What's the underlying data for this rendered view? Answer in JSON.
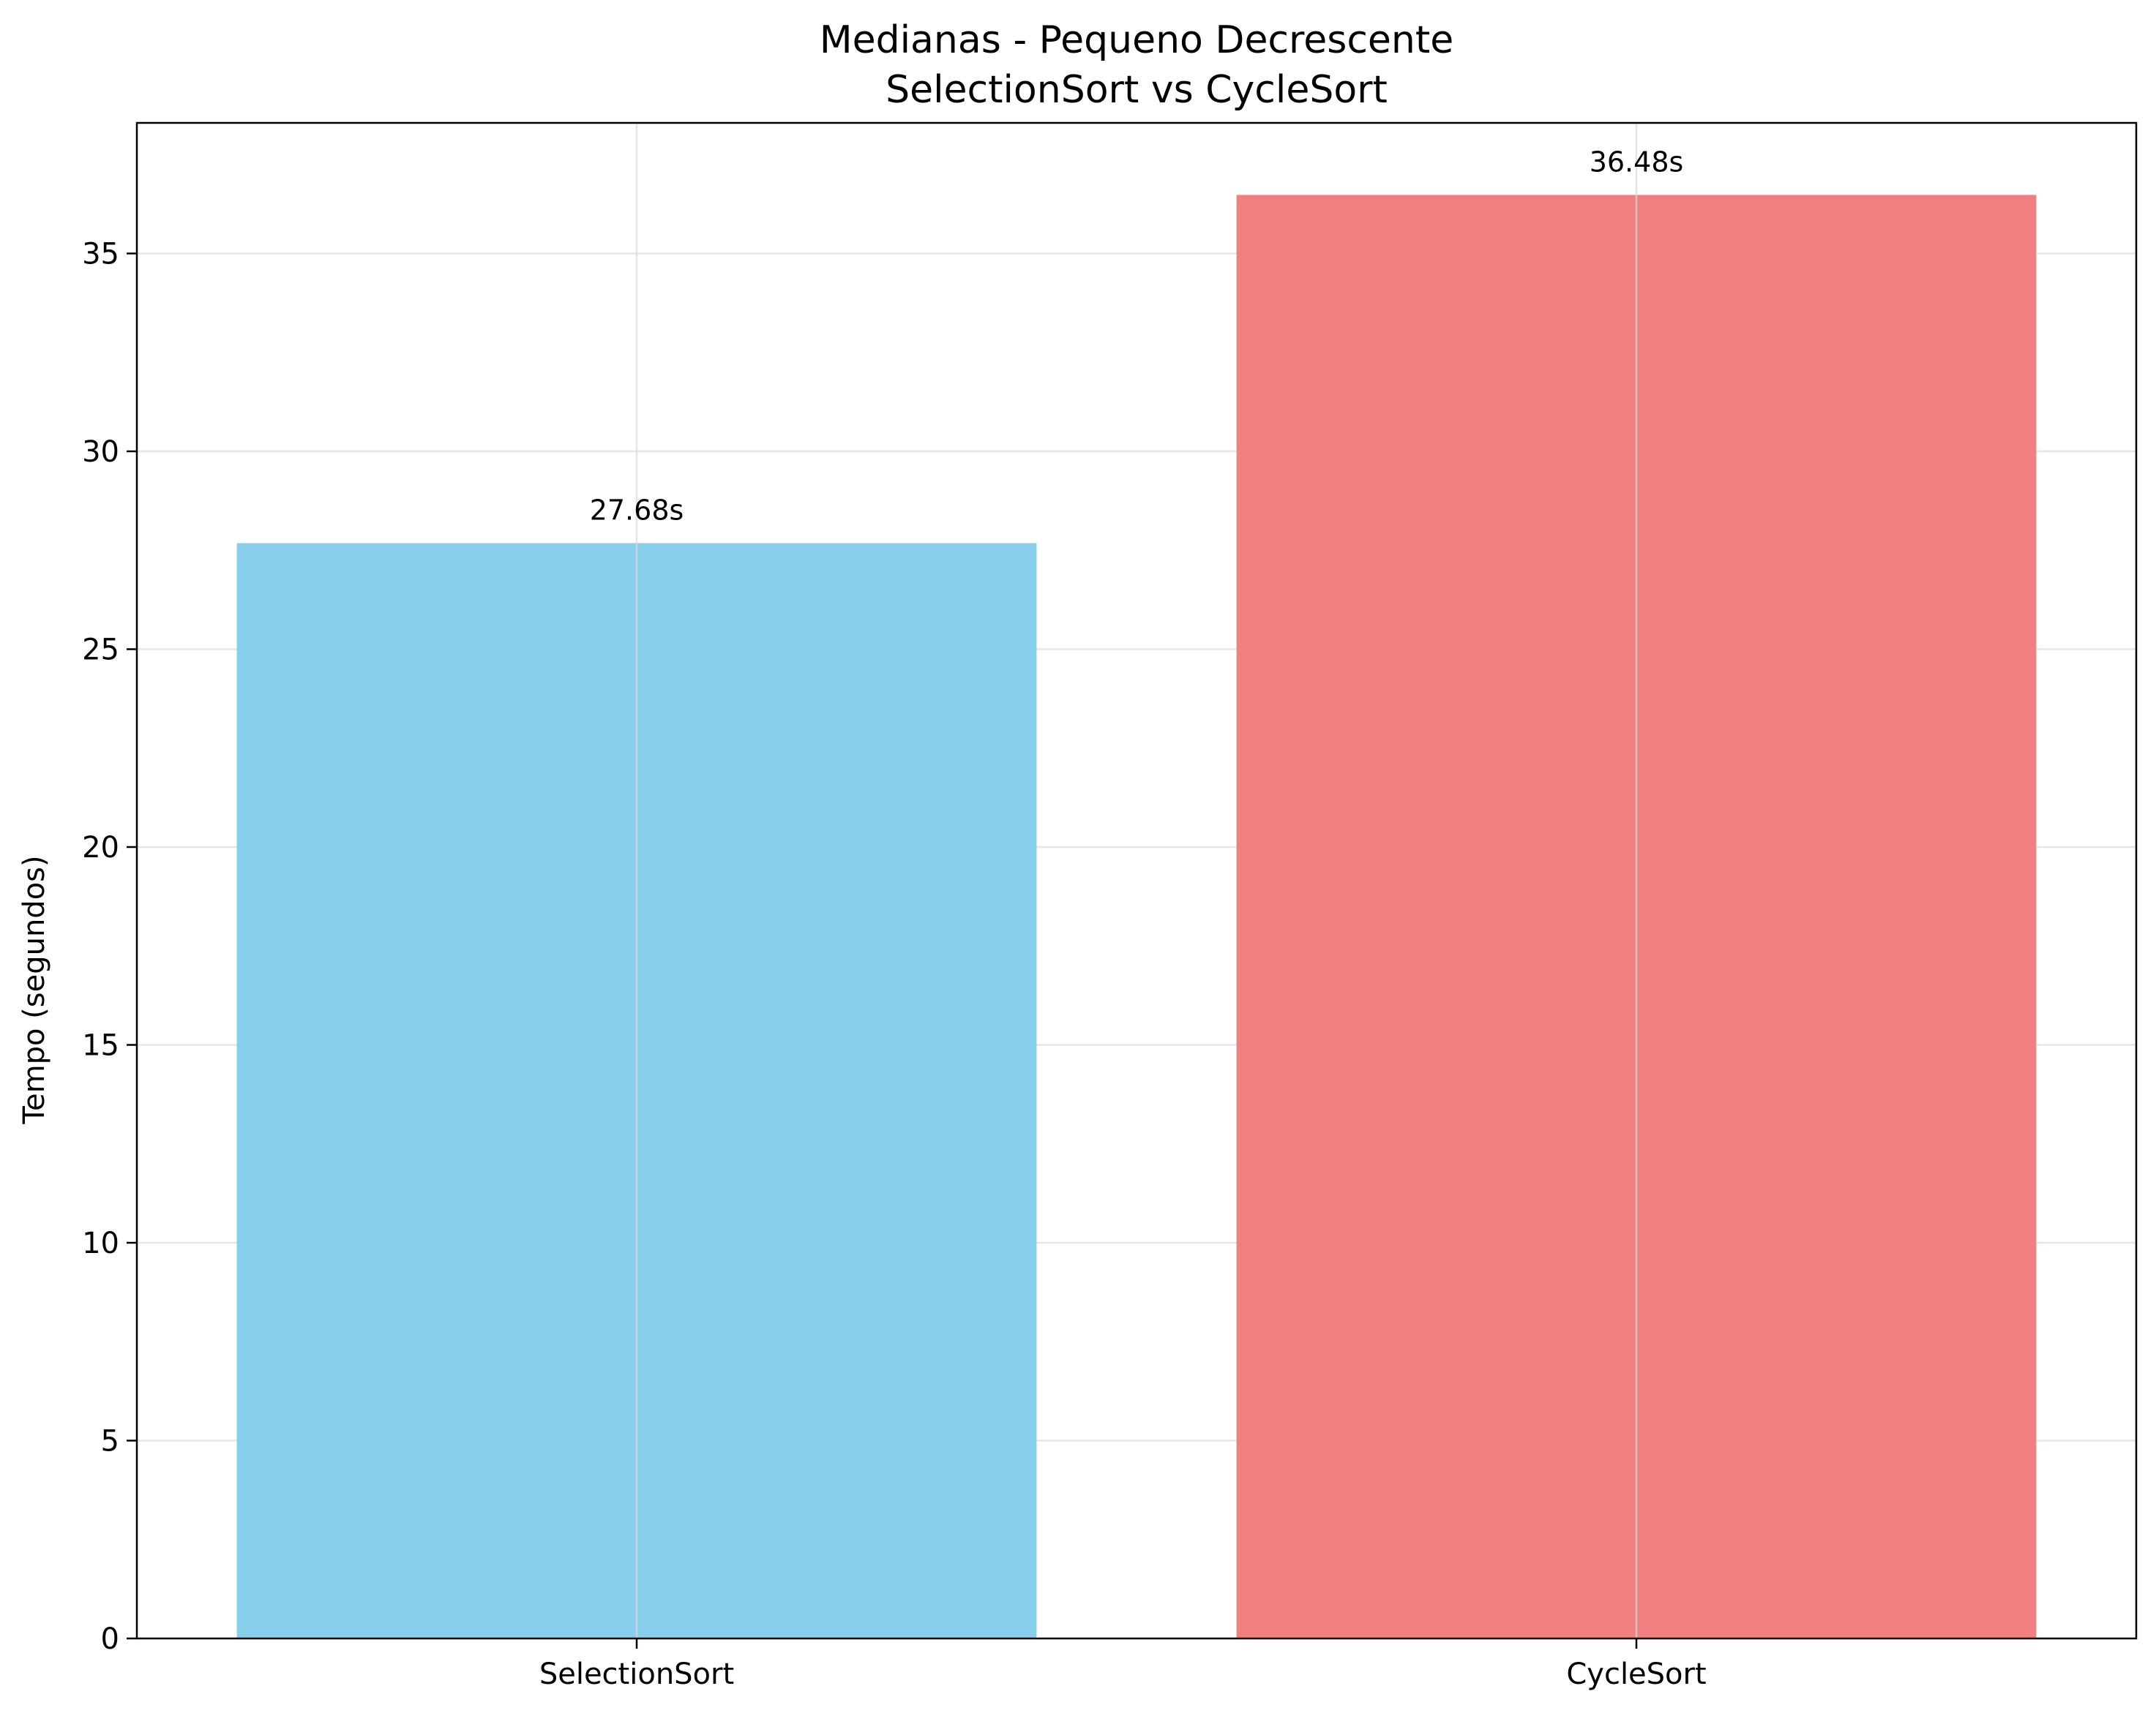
{
  "chart_data": {
    "type": "bar",
    "title": "Medianas - Pequeno Decrescente",
    "subtitle": "SelectionSort vs CycleSort",
    "xlabel": "",
    "ylabel": "Tempo (segundos)",
    "categories": [
      "SelectionSort",
      "CycleSort"
    ],
    "values": [
      27.68,
      36.48
    ],
    "value_labels": [
      "27.68s",
      "36.48s"
    ],
    "colors": [
      "#87CEEB",
      "#F08080"
    ],
    "ylim": [
      0,
      38.3
    ],
    "yticks": [
      0,
      5,
      10,
      15,
      20,
      25,
      30,
      35
    ],
    "ytick_labels": [
      "0",
      "5",
      "10",
      "15",
      "20",
      "25",
      "30",
      "35"
    ],
    "grid": true
  }
}
